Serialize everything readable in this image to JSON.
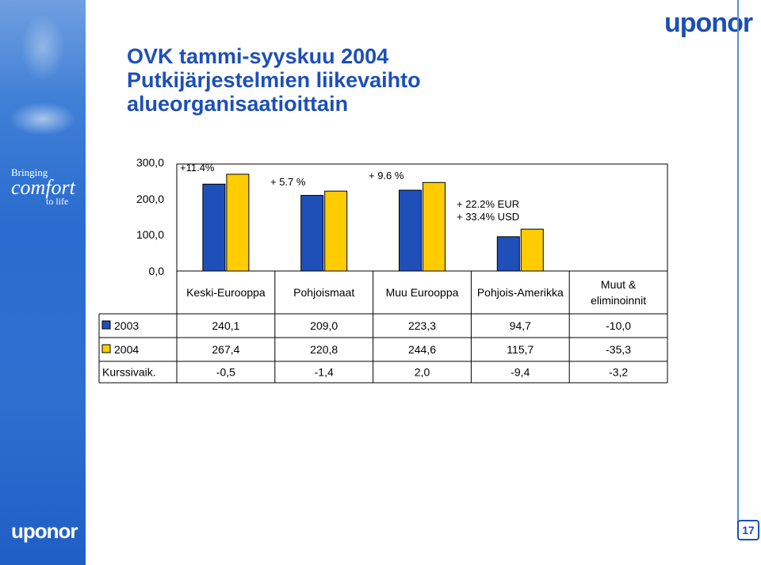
{
  "title": {
    "line1": "OVK tammi-syyskuu 2004",
    "line2": "Putkijärjestelmien liikevaihto",
    "line3": "alueorganisaatioittain"
  },
  "brand": {
    "logo_text": "uponor",
    "slogan_line1": "Bringing",
    "slogan_line2": "comfort",
    "slogan_line3": "to life"
  },
  "page_number": "17",
  "colors": {
    "bar_2003": "#1f4fb8",
    "bar_2004": "#ffcc00",
    "brand_blue": "#1d4fb8"
  },
  "chart_data": {
    "type": "bar",
    "categories": [
      "Keski-Eurooppa",
      "Pohjoismaat",
      "Muu Eurooppa",
      "Pohjois-Amerikka",
      "Muut & eliminoinnit"
    ],
    "category_lines": [
      [
        "Keski-Eurooppa"
      ],
      [
        "Pohjoismaat"
      ],
      [
        "Muu Eurooppa"
      ],
      [
        "Pohjois-Amerikka"
      ],
      [
        "Muut &",
        "eliminoinnit"
      ]
    ],
    "series": [
      {
        "name": "2003",
        "values": [
          240.1,
          209.0,
          223.3,
          94.7,
          -10.0
        ],
        "labels": [
          "240,1",
          "209,0",
          "223,3",
          "94,7",
          "-10,0"
        ],
        "color": "#1f4fb8"
      },
      {
        "name": "2004",
        "values": [
          267.4,
          220.8,
          244.6,
          115.7,
          -35.3
        ],
        "labels": [
          "267,4",
          "220,8",
          "244,6",
          "115,7",
          "-35,3"
        ],
        "color": "#ffcc00"
      }
    ],
    "extra_row": {
      "name": "Kurssivaik.",
      "labels": [
        "-0,5",
        "-1,4",
        "2,0",
        "-9,4",
        "-3,2"
      ]
    },
    "annotations": [
      "+11.4%",
      "+ 5.7 %",
      "+ 9.6 %",
      "+ 22.2% EUR",
      "+ 33.4% USD"
    ],
    "yticks": [
      "300,0",
      "200,0",
      "100,0",
      "0,0"
    ],
    "ylim": [
      0,
      300
    ],
    "grid": false,
    "legend": "data-table"
  }
}
